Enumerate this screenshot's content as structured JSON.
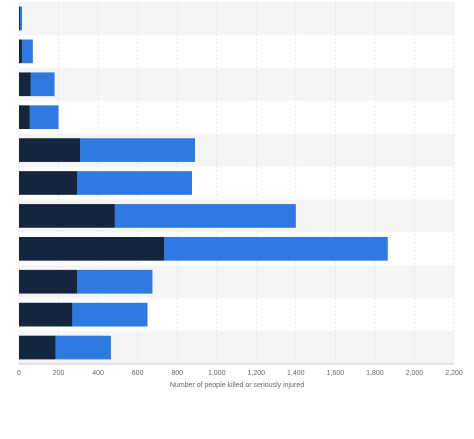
{
  "chart_data": {
    "type": "bar",
    "orientation": "horizontal",
    "stacked": true,
    "title": "",
    "xlabel": "Number of people killed or seriously injured",
    "ylabel": "",
    "xlim": [
      0,
      2200
    ],
    "x_ticks": [
      0,
      200,
      400,
      600,
      800,
      1000,
      1200,
      1400,
      1600,
      1800,
      2000,
      2200
    ],
    "x_tick_labels": [
      "0",
      "200",
      "400",
      "600",
      "800",
      "1,000",
      "1,200",
      "1,400",
      "1,600",
      "1,800",
      "2,000",
      "2,200"
    ],
    "grid": true,
    "categories": [
      "",
      "",
      "",
      "",
      "",
      "",
      "",
      "",
      "",
      "",
      ""
    ],
    "series": [
      {
        "values": [
          5,
          15,
          60,
          55,
          310,
          295,
          485,
          735,
          295,
          270,
          185
        ],
        "color": "#14263d"
      },
      {
        "values": [
          10,
          55,
          120,
          145,
          580,
          580,
          915,
          1130,
          380,
          380,
          280
        ],
        "color": "#2f7ae0"
      }
    ],
    "colors": {
      "band": "#f5f5f5",
      "grid": "#dddddd",
      "axis": "#bbbbbb"
    }
  }
}
